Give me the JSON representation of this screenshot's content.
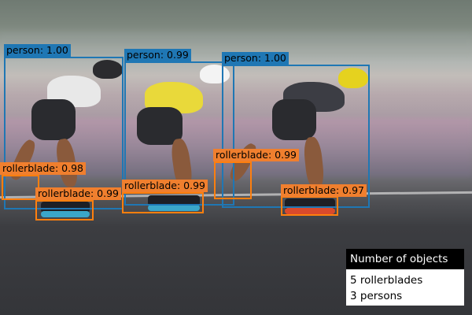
{
  "detections": [
    {
      "label": "person: 1.00"
    },
    {
      "label": "person: 0.99"
    },
    {
      "label": "person: 1.00"
    },
    {
      "label": "rollerblade: 0.98"
    },
    {
      "label": "rollerblade: 0.99"
    },
    {
      "label": "rollerblade: 0.99"
    },
    {
      "label": "rollerblade: 0.99"
    },
    {
      "label": "rollerblade: 0.97"
    }
  ],
  "summary": {
    "title": "Number of objects",
    "lines": [
      "5 rollerblades",
      "3 persons"
    ]
  },
  "colors": {
    "person_box": "#1f77b4",
    "rollerblade_box": "#ff7f0e",
    "legend_header": "#000000"
  }
}
